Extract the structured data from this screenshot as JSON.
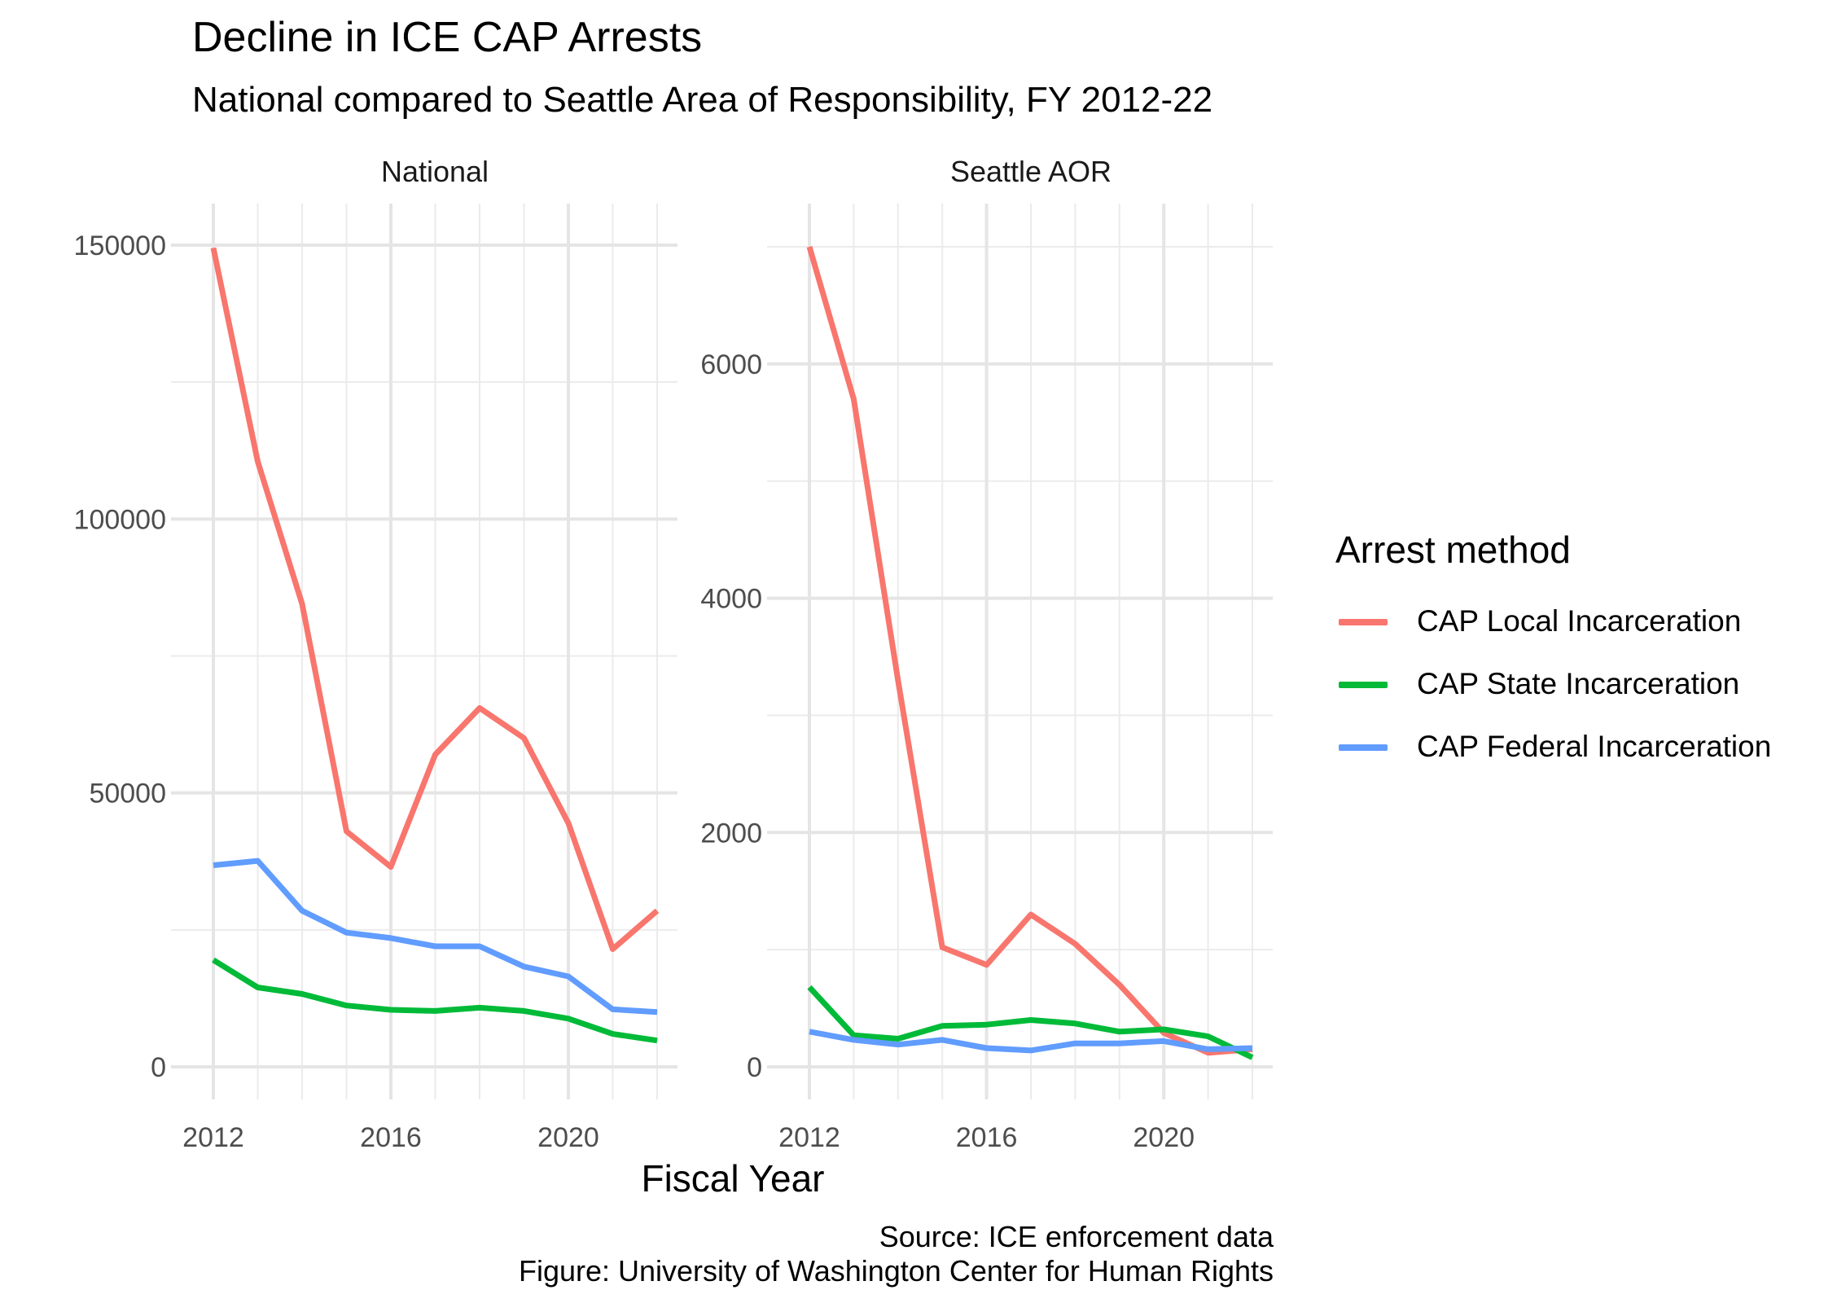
{
  "title": "Decline in ICE CAP Arrests",
  "subtitle": "National compared to Seattle Area of Responsibility, FY 2012-22",
  "xlabel": "Fiscal Year",
  "caption_lines": [
    "Source: ICE enforcement data",
    "Figure: University of Washington Center for Human Rights"
  ],
  "legend": {
    "title": "Arrest method",
    "items": [
      {
        "label": "CAP Local Incarceration",
        "color": "#F8766D"
      },
      {
        "label": "CAP State Incarceration",
        "color": "#00BA38"
      },
      {
        "label": "CAP Federal Incarceration",
        "color": "#619CFF"
      }
    ]
  },
  "chart_data": [
    {
      "type": "line",
      "title": "National",
      "x": [
        2012,
        2013,
        2014,
        2015,
        2016,
        2017,
        2018,
        2019,
        2020,
        2021,
        2022
      ],
      "xticks": [
        2012,
        2016,
        2020
      ],
      "xlim": [
        2012,
        2022
      ],
      "yticks": [
        0,
        50000,
        100000,
        150000
      ],
      "ylim": [
        0,
        150000
      ],
      "grid": true,
      "series": [
        {
          "name": "CAP Local Incarceration",
          "color": "#F8766D",
          "values": [
            149500,
            110500,
            84500,
            43000,
            36500,
            57000,
            65500,
            60000,
            44500,
            21500,
            28500
          ]
        },
        {
          "name": "CAP State Incarceration",
          "color": "#00BA38",
          "values": [
            19500,
            14500,
            13300,
            11200,
            10400,
            10200,
            10800,
            10200,
            8800,
            6000,
            4800
          ]
        },
        {
          "name": "CAP Federal Incarceration",
          "color": "#619CFF",
          "values": [
            36800,
            37600,
            28500,
            24500,
            23500,
            22000,
            22000,
            18300,
            16500,
            10500,
            10000
          ]
        }
      ]
    },
    {
      "type": "line",
      "title": "Seattle AOR",
      "x": [
        2012,
        2013,
        2014,
        2015,
        2016,
        2017,
        2018,
        2019,
        2020,
        2021,
        2022
      ],
      "xticks": [
        2012,
        2016,
        2020
      ],
      "xlim": [
        2012,
        2022
      ],
      "yticks": [
        0,
        2000,
        4000,
        6000
      ],
      "ylim": [
        0,
        7000
      ],
      "grid": true,
      "series": [
        {
          "name": "CAP Local Incarceration",
          "color": "#F8766D",
          "values": [
            7000,
            5700,
            3300,
            1020,
            870,
            1300,
            1050,
            700,
            290,
            120,
            150
          ]
        },
        {
          "name": "CAP State Incarceration",
          "color": "#00BA38",
          "values": [
            680,
            270,
            240,
            350,
            360,
            400,
            370,
            300,
            320,
            260,
            80
          ]
        },
        {
          "name": "CAP Federal Incarceration",
          "color": "#619CFF",
          "values": [
            300,
            230,
            190,
            230,
            160,
            140,
            200,
            200,
            220,
            150,
            160
          ]
        }
      ]
    }
  ]
}
